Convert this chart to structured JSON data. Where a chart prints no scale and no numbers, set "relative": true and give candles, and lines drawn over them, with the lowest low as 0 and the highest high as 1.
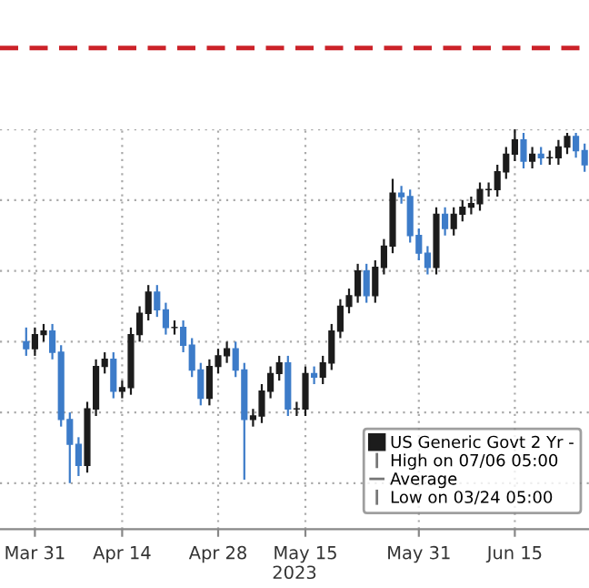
{
  "chart_data": {
    "type": "candlestick",
    "relative": true,
    "xlabel": "2023",
    "categories": [
      null,
      "Mar 31",
      null,
      null,
      null,
      null,
      null,
      null,
      null,
      null,
      null,
      "Apr 14",
      null,
      null,
      null,
      null,
      null,
      null,
      null,
      null,
      null,
      null,
      "Apr 28",
      null,
      null,
      null,
      null,
      null,
      null,
      null,
      null,
      null,
      "May 15",
      null,
      null,
      null,
      null,
      null,
      null,
      null,
      null,
      null,
      null,
      null,
      null,
      "May 31",
      null,
      null,
      null,
      null,
      null,
      null,
      null,
      null,
      null,
      null,
      "Jun 15",
      null,
      null,
      null,
      null,
      null,
      null,
      null,
      null
    ],
    "series": [
      {
        "name": "US Generic Govt 2 Yr -",
        "ohlc": [
          [
            0.4,
            0.44,
            0.36,
            0.38
          ],
          [
            0.38,
            0.44,
            0.36,
            0.42
          ],
          [
            0.42,
            0.45,
            0.4,
            0.43
          ],
          [
            0.43,
            0.45,
            0.35,
            0.37
          ],
          [
            0.37,
            0.39,
            0.16,
            0.18
          ],
          [
            0.18,
            0.2,
            0.0,
            0.11
          ],
          [
            0.11,
            0.13,
            0.02,
            0.05
          ],
          [
            0.05,
            0.23,
            0.03,
            0.21
          ],
          [
            0.21,
            0.35,
            0.19,
            0.33
          ],
          [
            0.33,
            0.37,
            0.31,
            0.35
          ],
          [
            0.35,
            0.37,
            0.24,
            0.26
          ],
          [
            0.26,
            0.29,
            0.24,
            0.27
          ],
          [
            0.27,
            0.44,
            0.25,
            0.42
          ],
          [
            0.42,
            0.5,
            0.4,
            0.48
          ],
          [
            0.48,
            0.56,
            0.46,
            0.54
          ],
          [
            0.54,
            0.56,
            0.47,
            0.49
          ],
          [
            0.49,
            0.51,
            0.42,
            0.44
          ],
          [
            0.44,
            0.46,
            0.42,
            0.44
          ],
          [
            0.44,
            0.46,
            0.37,
            0.39
          ],
          [
            0.39,
            0.41,
            0.3,
            0.32
          ],
          [
            0.32,
            0.34,
            0.22,
            0.24
          ],
          [
            0.24,
            0.35,
            0.22,
            0.33
          ],
          [
            0.33,
            0.38,
            0.31,
            0.36
          ],
          [
            0.36,
            0.4,
            0.34,
            0.38
          ],
          [
            0.38,
            0.4,
            0.3,
            0.32
          ],
          [
            0.32,
            0.34,
            0.01,
            0.18
          ],
          [
            0.18,
            0.21,
            0.16,
            0.19
          ],
          [
            0.19,
            0.28,
            0.17,
            0.26
          ],
          [
            0.26,
            0.33,
            0.24,
            0.31
          ],
          [
            0.31,
            0.36,
            0.29,
            0.34
          ],
          [
            0.34,
            0.36,
            0.19,
            0.21
          ],
          [
            0.21,
            0.23,
            0.19,
            0.21
          ],
          [
            0.21,
            0.33,
            0.19,
            0.31
          ],
          [
            0.31,
            0.33,
            0.28,
            0.3
          ],
          [
            0.3,
            0.36,
            0.28,
            0.34
          ],
          [
            0.34,
            0.45,
            0.32,
            0.43
          ],
          [
            0.43,
            0.52,
            0.41,
            0.5
          ],
          [
            0.5,
            0.55,
            0.48,
            0.53
          ],
          [
            0.53,
            0.62,
            0.51,
            0.6
          ],
          [
            0.6,
            0.62,
            0.51,
            0.53
          ],
          [
            0.53,
            0.63,
            0.51,
            0.61
          ],
          [
            0.61,
            0.69,
            0.59,
            0.67
          ],
          [
            0.67,
            0.86,
            0.65,
            0.82
          ],
          [
            0.82,
            0.84,
            0.79,
            0.81
          ],
          [
            0.81,
            0.83,
            0.68,
            0.7
          ],
          [
            0.7,
            0.72,
            0.63,
            0.65
          ],
          [
            0.65,
            0.67,
            0.59,
            0.61
          ],
          [
            0.61,
            0.78,
            0.59,
            0.76
          ],
          [
            0.76,
            0.78,
            0.7,
            0.72
          ],
          [
            0.72,
            0.78,
            0.7,
            0.76
          ],
          [
            0.76,
            0.8,
            0.74,
            0.78
          ],
          [
            0.78,
            0.81,
            0.76,
            0.79
          ],
          [
            0.79,
            0.85,
            0.77,
            0.83
          ],
          [
            0.83,
            0.85,
            0.81,
            0.83
          ],
          [
            0.83,
            0.9,
            0.81,
            0.88
          ],
          [
            0.88,
            0.95,
            0.86,
            0.93
          ],
          [
            0.93,
            1.0,
            0.91,
            0.97
          ],
          [
            0.97,
            0.99,
            0.89,
            0.91
          ],
          [
            0.91,
            0.95,
            0.89,
            0.93
          ],
          [
            0.93,
            0.95,
            0.9,
            0.92
          ],
          [
            0.92,
            0.94,
            0.9,
            0.92
          ],
          [
            0.92,
            0.97,
            0.9,
            0.95
          ],
          [
            0.95,
            0.99,
            0.93,
            0.98
          ],
          [
            0.98,
            0.99,
            0.92,
            0.94
          ],
          [
            0.94,
            0.96,
            0.88,
            0.9
          ]
        ],
        "colors": [
          "#3d7cc9",
          "#1c1c1c",
          "#1c1c1c",
          "#3d7cc9",
          "#3d7cc9",
          "#3d7cc9",
          "#3d7cc9",
          "#1c1c1c",
          "#1c1c1c",
          "#1c1c1c",
          "#3d7cc9",
          "#1c1c1c",
          "#1c1c1c",
          "#1c1c1c",
          "#1c1c1c",
          "#3d7cc9",
          "#3d7cc9",
          "#1c1c1c",
          "#3d7cc9",
          "#3d7cc9",
          "#3d7cc9",
          "#1c1c1c",
          "#1c1c1c",
          "#1c1c1c",
          "#3d7cc9",
          "#3d7cc9",
          "#1c1c1c",
          "#1c1c1c",
          "#1c1c1c",
          "#1c1c1c",
          "#3d7cc9",
          "#1c1c1c",
          "#1c1c1c",
          "#3d7cc9",
          "#1c1c1c",
          "#1c1c1c",
          "#1c1c1c",
          "#1c1c1c",
          "#1c1c1c",
          "#3d7cc9",
          "#1c1c1c",
          "#1c1c1c",
          "#1c1c1c",
          "#3d7cc9",
          "#3d7cc9",
          "#3d7cc9",
          "#3d7cc9",
          "#1c1c1c",
          "#3d7cc9",
          "#1c1c1c",
          "#1c1c1c",
          "#1c1c1c",
          "#1c1c1c",
          "#1c1c1c",
          "#1c1c1c",
          "#1c1c1c",
          "#1c1c1c",
          "#3d7cc9",
          "#1c1c1c",
          "#3d7cc9",
          "#1c1c1c",
          "#1c1c1c",
          "#1c1c1c",
          "#3d7cc9",
          "#3d7cc9"
        ]
      }
    ],
    "ref_lines": [
      {
        "axis": "y",
        "value": 1.23,
        "color": "#cc2229",
        "line_style": "dashed"
      }
    ],
    "annotations": [
      "High on 07/06 05:00",
      "Average",
      "Low on 03/24 05:00"
    ],
    "grid": true,
    "legend": "bottom right"
  }
}
